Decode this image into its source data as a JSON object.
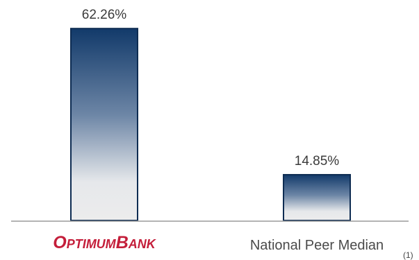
{
  "chart_data": {
    "type": "bar",
    "categories": [
      "OptimumBank",
      "National Peer Median"
    ],
    "values": [
      62.26,
      14.85
    ],
    "value_labels": [
      "62.26%",
      "14.85%"
    ],
    "ylim": [
      0,
      65
    ],
    "grid": false,
    "legend": "none",
    "footnote": "(1)"
  },
  "logo": {
    "first": "O",
    "first_rest": "PTIMUM",
    "second": "B",
    "second_rest": "ANK"
  },
  "colors": {
    "bar_top": "#123a6a",
    "bar_bottom": "#ececec",
    "bar_outline": "#0e2c52",
    "logo_red": "#c41e3a",
    "baseline": "#9a9a9a"
  }
}
